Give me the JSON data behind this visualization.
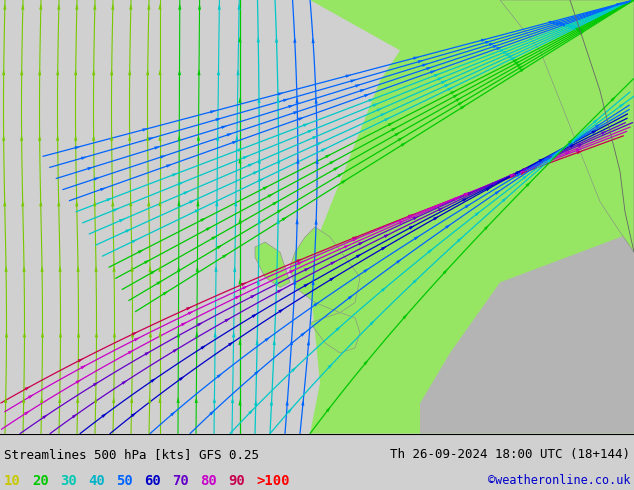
{
  "title_left": "Streamlines 500 hPa [kts] GFS 0.25",
  "title_right": "Th 26-09-2024 18:00 UTC (18+144)",
  "credit": "©weatheronline.co.uk",
  "legend_values": [
    "10",
    "20",
    "30",
    "40",
    "50",
    "60",
    "70",
    "80",
    "90",
    ">100"
  ],
  "legend_colors": [
    "#c8c800",
    "#00c800",
    "#00b4b4",
    "#00b4b4",
    "#0050ff",
    "#0000d0",
    "#7800c8",
    "#c800c8",
    "#c80064",
    "#ff0000"
  ],
  "bg_color": "#d0d0d0",
  "land_light": "#c8c8c8",
  "land_green": "#96e664",
  "text_color": "#000000",
  "bottom_bg": "#ffffff",
  "font_size": 9,
  "figsize": [
    6.34,
    4.9
  ],
  "dpi": 100,
  "speed_colors": {
    "10": "#c8c800",
    "20": "#78c800",
    "30": "#00c800",
    "40": "#00c8c8",
    "50": "#0064ff",
    "60": "#0000c8",
    "70": "#6400c8",
    "80": "#c800c8",
    "90": "#c80050",
    "100": "#ff0000"
  }
}
